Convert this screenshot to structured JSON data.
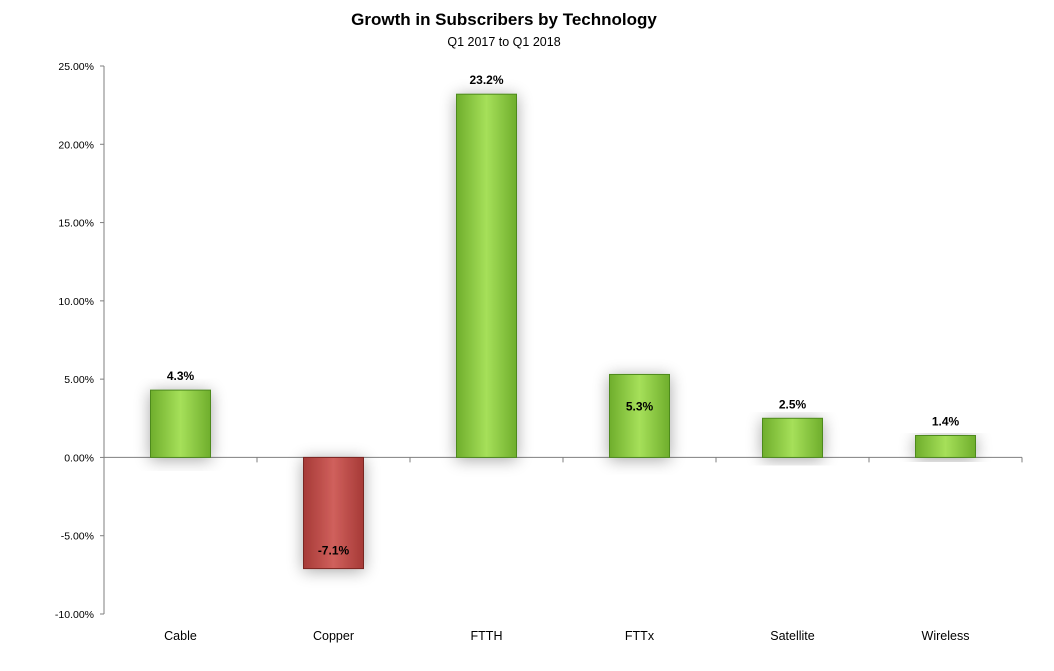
{
  "chart_data": {
    "type": "bar",
    "title": "Growth in Subscribers by Technology",
    "subtitle": "Q1 2017 to Q1 2018",
    "categories": [
      "Cable",
      "Copper",
      "FTTH",
      "FTTx",
      "Satellite",
      "Wireless"
    ],
    "values": [
      4.3,
      -7.1,
      23.2,
      5.3,
      2.5,
      1.4
    ],
    "data_labels": [
      "4.3%",
      "-7.1%",
      "23.2%",
      "5.3%",
      "2.5%",
      "1.4%"
    ],
    "ylim": [
      -10,
      25
    ],
    "yticks": [
      25,
      20,
      15,
      10,
      5,
      0,
      -5,
      -10
    ],
    "ytick_labels": [
      "25.00%",
      "20.00%",
      "15.00%",
      "10.00%",
      "5.00%",
      "0.00%",
      "-5.00%",
      "-10.00%"
    ],
    "xlabel": "",
    "ylabel": "",
    "grid": false,
    "legend": "none",
    "colors": {
      "positive": "#92d050",
      "negative": "#c0504d"
    }
  }
}
